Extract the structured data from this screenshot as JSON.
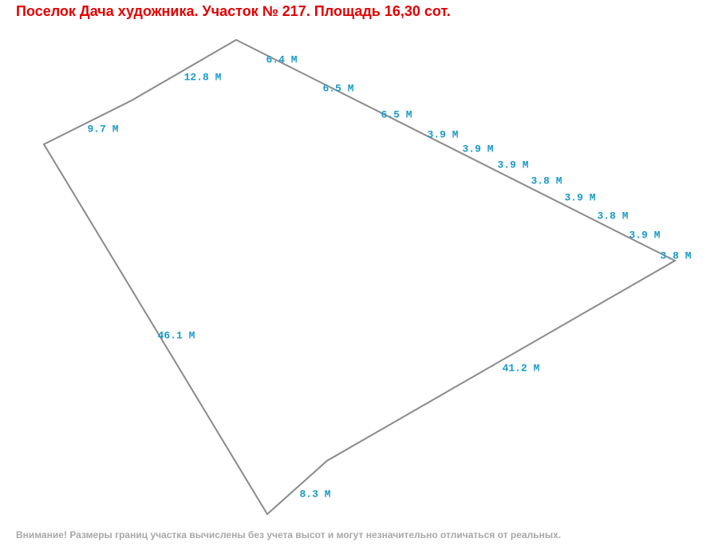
{
  "header": {
    "title": "Поселок Дача художника. Участок № 217. Площадь 16,30 сот."
  },
  "edges": [
    {
      "label": "6.4 М"
    },
    {
      "label": "12.8 М"
    },
    {
      "label": "9.7 М"
    },
    {
      "label": "6.5 М"
    },
    {
      "label": "6.5 М"
    },
    {
      "label": "3.9 М"
    },
    {
      "label": "3.9 М"
    },
    {
      "label": "3.9 М"
    },
    {
      "label": "3.8 М"
    },
    {
      "label": "3.9 М"
    },
    {
      "label": "3.8 М"
    },
    {
      "label": "3.9 М"
    },
    {
      "label": "3.8 М"
    },
    {
      "label": "41.2 М"
    },
    {
      "label": "8.3 М"
    },
    {
      "label": "46.1 М"
    }
  ],
  "footer": {
    "note": "Внимание! Размеры границ участка вычислены без учета высот и могут незначительно отличаться от реальных."
  }
}
